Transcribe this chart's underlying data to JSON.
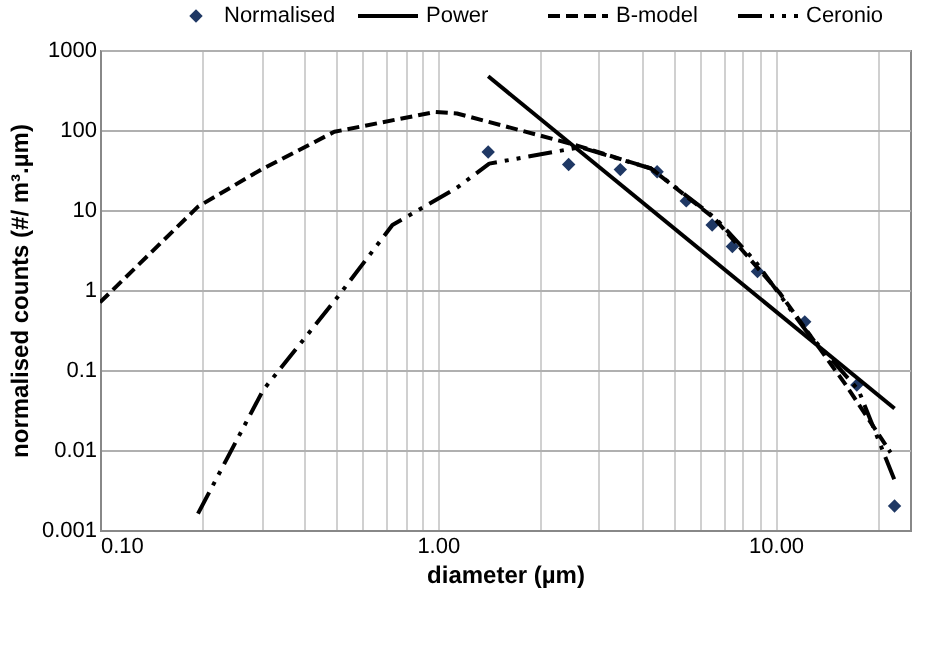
{
  "chart_data": {
    "type": "line",
    "xlabel": "diameter (µm)",
    "ylabel": "normalised counts (#/ m³.µm)",
    "log": "xy",
    "grid": true,
    "legend": "top",
    "xlim": [
      0.1,
      25
    ],
    "xticks": [
      {
        "value": 0.1,
        "label": "0.10"
      },
      {
        "value": 0.2,
        "label": null
      },
      {
        "value": 0.3,
        "label": null
      },
      {
        "value": 0.4,
        "label": null
      },
      {
        "value": 0.5,
        "label": null
      },
      {
        "value": 0.6,
        "label": null
      },
      {
        "value": 0.7,
        "label": null
      },
      {
        "value": 0.8,
        "label": null
      },
      {
        "value": 0.9,
        "label": null
      },
      {
        "value": 1,
        "label": "1.00"
      },
      {
        "value": 2,
        "label": null
      },
      {
        "value": 3,
        "label": null
      },
      {
        "value": 4,
        "label": null
      },
      {
        "value": 5,
        "label": null
      },
      {
        "value": 6,
        "label": null
      },
      {
        "value": 7,
        "label": null
      },
      {
        "value": 8,
        "label": null
      },
      {
        "value": 9,
        "label": null
      },
      {
        "value": 10,
        "label": "10.00"
      },
      {
        "value": 20,
        "label": null
      }
    ],
    "ylim": [
      0.001,
      1000
    ],
    "yticks": [
      0.001,
      0.01,
      0.1,
      1,
      10,
      100,
      1000
    ],
    "series": [
      {
        "name": "Normalised",
        "type": "scatter",
        "marker": "diamond",
        "color": "#1f3864",
        "x": [
          1.41,
          2.44,
          3.47,
          4.46,
          5.44,
          6.49,
          7.45,
          8.84,
          12.2,
          17.4,
          22.5
        ],
        "values": [
          53,
          37,
          32,
          30,
          13,
          6.5,
          3.5,
          1.7,
          0.4,
          0.065,
          0.002
        ]
      },
      {
        "name": "Power",
        "type": "line",
        "line_style": "solid",
        "color": "#000000",
        "x": [
          1.41,
          22.5
        ],
        "values": [
          469,
          0.033
        ]
      },
      {
        "name": "B-model",
        "type": "line",
        "line_style": "dashed",
        "color": "#000000",
        "x": [
          0.1,
          0.195,
          0.3,
          0.494,
          0.98,
          1.14,
          2.52,
          4.28,
          6.6,
          10.3,
          16.1,
          21.9
        ],
        "values": [
          0.7,
          11,
          32,
          95,
          168,
          161,
          66,
          33,
          7.8,
          0.91,
          0.066,
          0.0093
        ]
      },
      {
        "name": "Ceronio",
        "type": "line",
        "line_style": "dashdot",
        "color": "#000000",
        "x": [
          0.195,
          0.304,
          0.51,
          0.734,
          1.14,
          1.42,
          2.64,
          4.28,
          6.66,
          8.7,
          12.3,
          17.6,
          22.5
        ],
        "values": [
          0.0016,
          0.056,
          0.86,
          6.5,
          19,
          38,
          61,
          33,
          7.8,
          2.3,
          0.31,
          0.056,
          0.0042
        ]
      }
    ]
  }
}
